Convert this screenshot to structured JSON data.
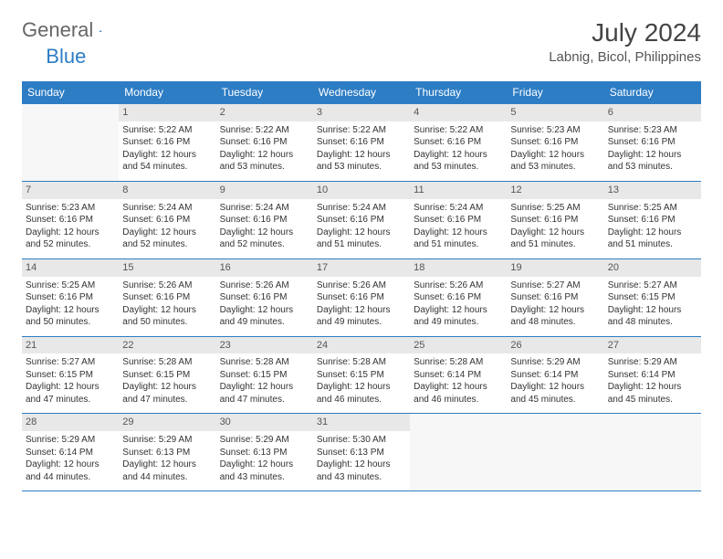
{
  "logo": {
    "text_general": "General",
    "text_blue": "Blue"
  },
  "title": "July 2024",
  "location": "Labnig, Bicol, Philippines",
  "colors": {
    "brand_blue": "#2d7dc4",
    "header_text": "#ffffff",
    "daynum_bg": "#e8e8e8",
    "body_text": "#333333",
    "logo_gray": "#666666",
    "title_gray": "#444444",
    "location_gray": "#555555",
    "page_bg": "#ffffff"
  },
  "weekdays": [
    "Sunday",
    "Monday",
    "Tuesday",
    "Wednesday",
    "Thursday",
    "Friday",
    "Saturday"
  ],
  "start_offset": 1,
  "days": [
    {
      "n": 1,
      "sunrise": "5:22 AM",
      "sunset": "6:16 PM",
      "daylight": "12 hours and 54 minutes."
    },
    {
      "n": 2,
      "sunrise": "5:22 AM",
      "sunset": "6:16 PM",
      "daylight": "12 hours and 53 minutes."
    },
    {
      "n": 3,
      "sunrise": "5:22 AM",
      "sunset": "6:16 PM",
      "daylight": "12 hours and 53 minutes."
    },
    {
      "n": 4,
      "sunrise": "5:22 AM",
      "sunset": "6:16 PM",
      "daylight": "12 hours and 53 minutes."
    },
    {
      "n": 5,
      "sunrise": "5:23 AM",
      "sunset": "6:16 PM",
      "daylight": "12 hours and 53 minutes."
    },
    {
      "n": 6,
      "sunrise": "5:23 AM",
      "sunset": "6:16 PM",
      "daylight": "12 hours and 53 minutes."
    },
    {
      "n": 7,
      "sunrise": "5:23 AM",
      "sunset": "6:16 PM",
      "daylight": "12 hours and 52 minutes."
    },
    {
      "n": 8,
      "sunrise": "5:24 AM",
      "sunset": "6:16 PM",
      "daylight": "12 hours and 52 minutes."
    },
    {
      "n": 9,
      "sunrise": "5:24 AM",
      "sunset": "6:16 PM",
      "daylight": "12 hours and 52 minutes."
    },
    {
      "n": 10,
      "sunrise": "5:24 AM",
      "sunset": "6:16 PM",
      "daylight": "12 hours and 51 minutes."
    },
    {
      "n": 11,
      "sunrise": "5:24 AM",
      "sunset": "6:16 PM",
      "daylight": "12 hours and 51 minutes."
    },
    {
      "n": 12,
      "sunrise": "5:25 AM",
      "sunset": "6:16 PM",
      "daylight": "12 hours and 51 minutes."
    },
    {
      "n": 13,
      "sunrise": "5:25 AM",
      "sunset": "6:16 PM",
      "daylight": "12 hours and 51 minutes."
    },
    {
      "n": 14,
      "sunrise": "5:25 AM",
      "sunset": "6:16 PM",
      "daylight": "12 hours and 50 minutes."
    },
    {
      "n": 15,
      "sunrise": "5:26 AM",
      "sunset": "6:16 PM",
      "daylight": "12 hours and 50 minutes."
    },
    {
      "n": 16,
      "sunrise": "5:26 AM",
      "sunset": "6:16 PM",
      "daylight": "12 hours and 49 minutes."
    },
    {
      "n": 17,
      "sunrise": "5:26 AM",
      "sunset": "6:16 PM",
      "daylight": "12 hours and 49 minutes."
    },
    {
      "n": 18,
      "sunrise": "5:26 AM",
      "sunset": "6:16 PM",
      "daylight": "12 hours and 49 minutes."
    },
    {
      "n": 19,
      "sunrise": "5:27 AM",
      "sunset": "6:16 PM",
      "daylight": "12 hours and 48 minutes."
    },
    {
      "n": 20,
      "sunrise": "5:27 AM",
      "sunset": "6:15 PM",
      "daylight": "12 hours and 48 minutes."
    },
    {
      "n": 21,
      "sunrise": "5:27 AM",
      "sunset": "6:15 PM",
      "daylight": "12 hours and 47 minutes."
    },
    {
      "n": 22,
      "sunrise": "5:28 AM",
      "sunset": "6:15 PM",
      "daylight": "12 hours and 47 minutes."
    },
    {
      "n": 23,
      "sunrise": "5:28 AM",
      "sunset": "6:15 PM",
      "daylight": "12 hours and 47 minutes."
    },
    {
      "n": 24,
      "sunrise": "5:28 AM",
      "sunset": "6:15 PM",
      "daylight": "12 hours and 46 minutes."
    },
    {
      "n": 25,
      "sunrise": "5:28 AM",
      "sunset": "6:14 PM",
      "daylight": "12 hours and 46 minutes."
    },
    {
      "n": 26,
      "sunrise": "5:29 AM",
      "sunset": "6:14 PM",
      "daylight": "12 hours and 45 minutes."
    },
    {
      "n": 27,
      "sunrise": "5:29 AM",
      "sunset": "6:14 PM",
      "daylight": "12 hours and 45 minutes."
    },
    {
      "n": 28,
      "sunrise": "5:29 AM",
      "sunset": "6:14 PM",
      "daylight": "12 hours and 44 minutes."
    },
    {
      "n": 29,
      "sunrise": "5:29 AM",
      "sunset": "6:13 PM",
      "daylight": "12 hours and 44 minutes."
    },
    {
      "n": 30,
      "sunrise": "5:29 AM",
      "sunset": "6:13 PM",
      "daylight": "12 hours and 43 minutes."
    },
    {
      "n": 31,
      "sunrise": "5:30 AM",
      "sunset": "6:13 PM",
      "daylight": "12 hours and 43 minutes."
    }
  ],
  "labels": {
    "sunrise_prefix": "Sunrise: ",
    "sunset_prefix": "Sunset: ",
    "daylight_prefix": "Daylight: "
  }
}
